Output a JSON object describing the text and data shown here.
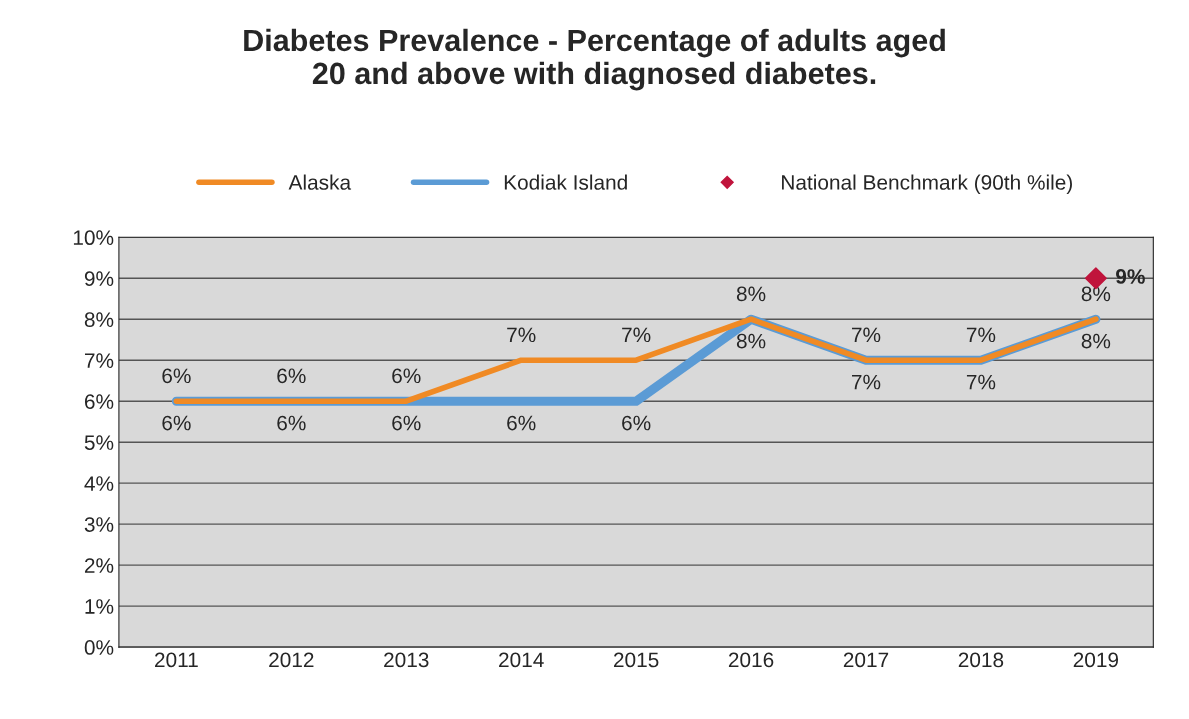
{
  "chart_data": {
    "type": "line",
    "title": "Diabetes Prevalence - Percentage of adults aged\n20 and above with diagnosed diabetes.",
    "categories": [
      "2011",
      "2012",
      "2013",
      "2014",
      "2015",
      "2016",
      "2017",
      "2018",
      "2019"
    ],
    "series": [
      {
        "name": "Alaska",
        "color": "#f08a24",
        "values": [
          6,
          6,
          6,
          7,
          7,
          8,
          7,
          7,
          8
        ],
        "value_labels": [
          "6%",
          "6%",
          "6%",
          "7%",
          "7%",
          "8%",
          "7%",
          "7%",
          "8%"
        ]
      },
      {
        "name": "Kodiak Island",
        "color": "#5b9bd5",
        "values": [
          6,
          6,
          6,
          6,
          6,
          8,
          7,
          7,
          8
        ],
        "value_labels": [
          "6%",
          "6%",
          "6%",
          "6%",
          "6%",
          "8%",
          "7%",
          "7%",
          "8%"
        ]
      },
      {
        "name": "National Benchmark (90th %ile)",
        "type": "scatter",
        "marker": "diamond",
        "color": "#c0143c",
        "values": [
          null,
          null,
          null,
          null,
          null,
          null,
          null,
          null,
          9
        ],
        "value_labels": [
          null,
          null,
          null,
          null,
          null,
          null,
          null,
          null,
          "9%"
        ]
      }
    ],
    "ylim": [
      0,
      10
    ],
    "yticks": [
      {
        "value": 0,
        "label": "0%"
      },
      {
        "value": 1,
        "label": "1%"
      },
      {
        "value": 2,
        "label": "2%"
      },
      {
        "value": 3,
        "label": "3%"
      },
      {
        "value": 4,
        "label": "4%"
      },
      {
        "value": 5,
        "label": "5%"
      },
      {
        "value": 6,
        "label": "6%"
      },
      {
        "value": 7,
        "label": "7%"
      },
      {
        "value": 8,
        "label": "8%"
      },
      {
        "value": 9,
        "label": "9%"
      },
      {
        "value": 10,
        "label": "10%"
      }
    ],
    "grid": "y",
    "legend": "top",
    "marker": "none",
    "line_style": "solid"
  }
}
